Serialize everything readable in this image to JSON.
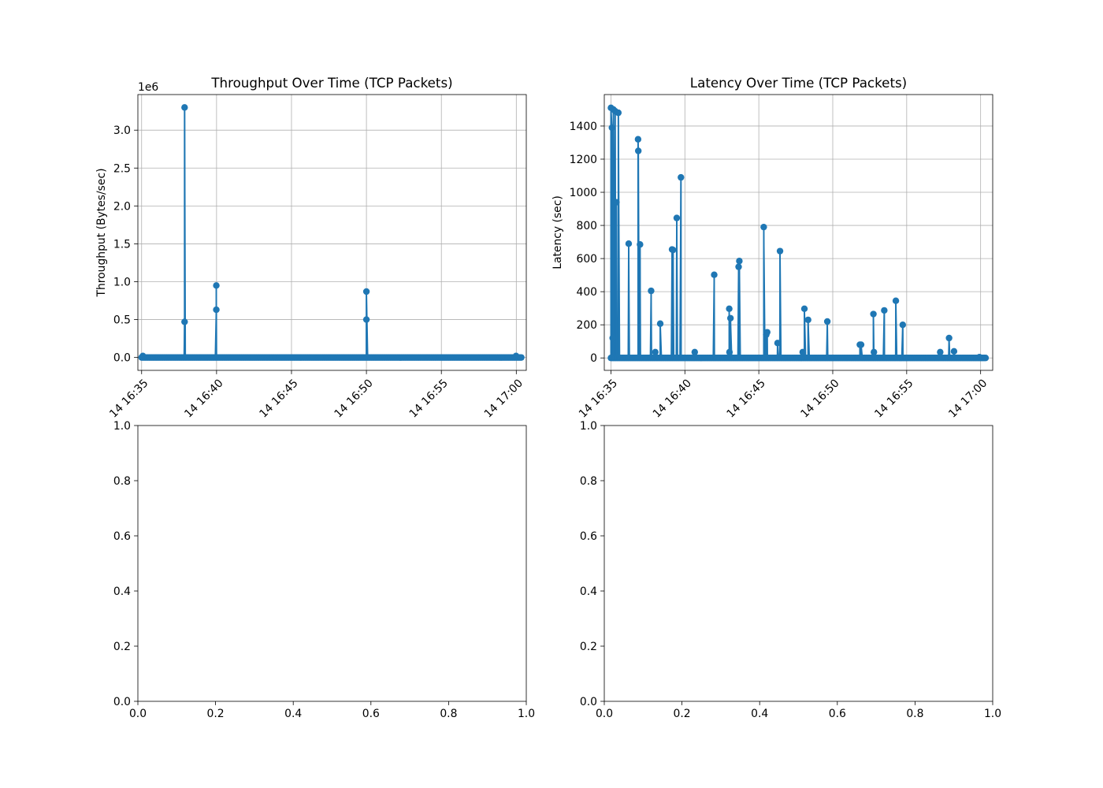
{
  "colors": {
    "series": "#1f77b4",
    "grid": "#b0b0b0",
    "axis": "#000000"
  },
  "chart_data": [
    {
      "type": "line",
      "title": "Throughput Over Time (TCP Packets)",
      "xlabel": "",
      "ylabel": "Throughput (Bytes/sec)",
      "offset_text": "1e6",
      "grid": true,
      "marker": "circle",
      "x_type": "time",
      "xlim": [
        "16:34:45",
        "17:00:40"
      ],
      "ylim": [
        -0.17,
        3.47
      ],
      "y_scale_factor": 1000000,
      "xticks": [
        "16:35:00",
        "16:40:00",
        "16:45:00",
        "16:50:00",
        "16:55:00",
        "17:00:00"
      ],
      "xtick_labels": [
        "14 16:35",
        "14 16:40",
        "14 16:45",
        "14 16:50",
        "14 16:55",
        "14 17:00"
      ],
      "yticks": [
        0.0,
        0.5,
        1.0,
        1.5,
        2.0,
        2.5,
        3.0
      ],
      "ytick_labels": [
        "0.0",
        "0.5",
        "1.0",
        "1.5",
        "2.0",
        "2.5",
        "3.0"
      ],
      "baseline": {
        "start": "16:35:00",
        "end": "17:00:20",
        "step_seconds": 5,
        "value": 0.0
      },
      "spikes": [
        {
          "x": "16:35:05",
          "y": 0.02
        },
        {
          "x": "16:37:52",
          "y": 0.47
        },
        {
          "x": "16:37:52",
          "y": 3.3
        },
        {
          "x": "16:39:59",
          "y": 0.63
        },
        {
          "x": "16:39:59",
          "y": 0.95
        },
        {
          "x": "16:50:00",
          "y": 0.5
        },
        {
          "x": "16:50:00",
          "y": 0.87
        },
        {
          "x": "16:59:59",
          "y": 0.02
        }
      ]
    },
    {
      "type": "line",
      "title": "Latency Over Time (TCP Packets)",
      "xlabel": "",
      "ylabel": "Latency (sec)",
      "grid": true,
      "marker": "circle",
      "x_type": "time",
      "xlim": [
        "16:34:33",
        "17:00:49"
      ],
      "ylim": [
        -75,
        1590
      ],
      "xticks": [
        "16:35:00",
        "16:40:00",
        "16:45:00",
        "16:50:00",
        "16:55:00",
        "17:00:00"
      ],
      "xtick_labels": [
        "14 16:35",
        "14 16:40",
        "14 16:45",
        "14 16:50",
        "14 16:55",
        "14 17:00"
      ],
      "yticks": [
        0,
        200,
        400,
        600,
        800,
        1000,
        1200,
        1400
      ],
      "ytick_labels": [
        "0",
        "200",
        "400",
        "600",
        "800",
        "1000",
        "1200",
        "1400"
      ],
      "baseline": {
        "start": "16:35:00",
        "end": "17:00:20",
        "step_seconds": 5,
        "value": 0
      },
      "spikes": [
        {
          "x": "16:35:00",
          "y": 1510
        },
        {
          "x": "16:35:04",
          "y": 1390
        },
        {
          "x": "16:35:07",
          "y": 120
        },
        {
          "x": "16:35:10",
          "y": 1500
        },
        {
          "x": "16:35:17",
          "y": 1490
        },
        {
          "x": "16:35:22",
          "y": 940
        },
        {
          "x": "16:35:30",
          "y": 1480
        },
        {
          "x": "16:36:12",
          "y": 690
        },
        {
          "x": "16:36:50",
          "y": 1320
        },
        {
          "x": "16:36:51",
          "y": 1250
        },
        {
          "x": "16:36:58",
          "y": 685
        },
        {
          "x": "16:37:43",
          "y": 405
        },
        {
          "x": "16:38:00",
          "y": 35
        },
        {
          "x": "16:38:20",
          "y": 207
        },
        {
          "x": "16:39:08",
          "y": 655
        },
        {
          "x": "16:39:12",
          "y": 652
        },
        {
          "x": "16:39:27",
          "y": 845
        },
        {
          "x": "16:39:44",
          "y": 1090
        },
        {
          "x": "16:40:40",
          "y": 35
        },
        {
          "x": "16:41:59",
          "y": 502
        },
        {
          "x": "16:43:00",
          "y": 297
        },
        {
          "x": "16:43:01",
          "y": 35
        },
        {
          "x": "16:43:05",
          "y": 240
        },
        {
          "x": "16:43:38",
          "y": 550
        },
        {
          "x": "16:43:41",
          "y": 585
        },
        {
          "x": "16:45:20",
          "y": 790
        },
        {
          "x": "16:45:30",
          "y": 140
        },
        {
          "x": "16:45:34",
          "y": 155
        },
        {
          "x": "16:46:16",
          "y": 90
        },
        {
          "x": "16:46:26",
          "y": 645
        },
        {
          "x": "16:47:58",
          "y": 35
        },
        {
          "x": "16:48:05",
          "y": 297
        },
        {
          "x": "16:48:20",
          "y": 230
        },
        {
          "x": "16:49:38",
          "y": 220
        },
        {
          "x": "16:51:50",
          "y": 80
        },
        {
          "x": "16:51:55",
          "y": 80
        },
        {
          "x": "16:52:45",
          "y": 265
        },
        {
          "x": "16:52:47",
          "y": 35
        },
        {
          "x": "16:53:29",
          "y": 287
        },
        {
          "x": "16:54:16",
          "y": 345
        },
        {
          "x": "16:54:44",
          "y": 200
        },
        {
          "x": "16:57:16",
          "y": 35
        },
        {
          "x": "16:57:52",
          "y": 120
        },
        {
          "x": "16:58:12",
          "y": 40
        },
        {
          "x": "16:59:55",
          "y": 5
        }
      ]
    },
    {
      "type": "line",
      "title": "",
      "xlabel": "",
      "ylabel": "",
      "grid": false,
      "xlim": [
        0.0,
        1.0
      ],
      "ylim": [
        0.0,
        1.0
      ],
      "xticks": [
        0.0,
        0.2,
        0.4,
        0.6,
        0.8,
        1.0
      ],
      "xtick_labels": [
        "0.0",
        "0.2",
        "0.4",
        "0.6",
        "0.8",
        "1.0"
      ],
      "yticks": [
        0.0,
        0.2,
        0.4,
        0.6,
        0.8,
        1.0
      ],
      "ytick_labels": [
        "0.0",
        "0.2",
        "0.4",
        "0.6",
        "0.8",
        "1.0"
      ],
      "series": []
    },
    {
      "type": "line",
      "title": "",
      "xlabel": "",
      "ylabel": "",
      "grid": false,
      "xlim": [
        0.0,
        1.0
      ],
      "ylim": [
        0.0,
        1.0
      ],
      "xticks": [
        0.0,
        0.2,
        0.4,
        0.6,
        0.8,
        1.0
      ],
      "xtick_labels": [
        "0.0",
        "0.2",
        "0.4",
        "0.6",
        "0.8",
        "1.0"
      ],
      "yticks": [
        0.0,
        0.2,
        0.4,
        0.6,
        0.8,
        1.0
      ],
      "ytick_labels": [
        "0.0",
        "0.2",
        "0.4",
        "0.6",
        "0.8",
        "1.0"
      ],
      "series": []
    }
  ]
}
